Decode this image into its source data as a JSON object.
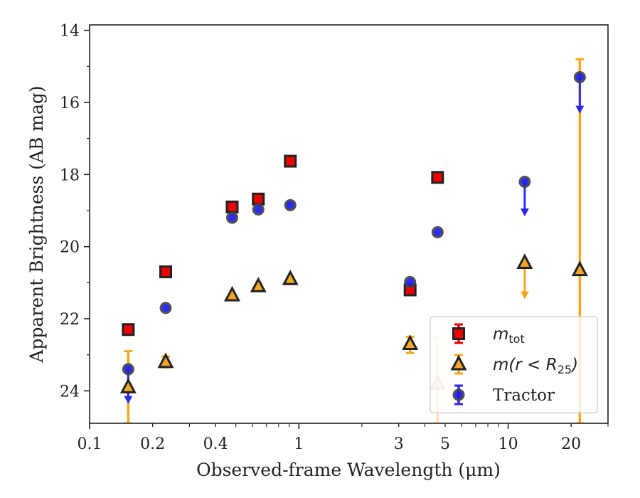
{
  "chart_data": {
    "type": "scatter",
    "title": "",
    "xlabel": "Observed-frame Wavelength (μm)",
    "ylabel": "Apparent Brightness (AB mag)",
    "xscale": "log",
    "xlim": [
      0.1,
      30
    ],
    "ylim": [
      24.9,
      13.85
    ],
    "y_inverted": true,
    "x_ticks": [
      {
        "value": 0.1,
        "label": "0.1"
      },
      {
        "value": 0.2,
        "label": "0.2"
      },
      {
        "value": 0.4,
        "label": "0.4"
      },
      {
        "value": 1,
        "label": "1"
      },
      {
        "value": 3,
        "label": "3"
      },
      {
        "value": 5,
        "label": "5"
      },
      {
        "value": 10,
        "label": "10"
      },
      {
        "value": 20,
        "label": "20"
      }
    ],
    "y_ticks": [
      {
        "value": 14,
        "label": "14"
      },
      {
        "value": 16,
        "label": "16"
      },
      {
        "value": 18,
        "label": "18"
      },
      {
        "value": 20,
        "label": "20"
      },
      {
        "value": 22,
        "label": "22"
      },
      {
        "value": 24,
        "label": "24"
      }
    ],
    "legend_position": "bottom-right",
    "series": [
      {
        "name": "m_tot",
        "legend_main": "m",
        "legend_sub": "tot",
        "marker": "square",
        "color": "#ee0000",
        "edge_color": "#222222",
        "err_color": "#ee0000",
        "points": [
          {
            "x": 0.153,
            "y": 22.3
          },
          {
            "x": 0.231,
            "y": 20.7
          },
          {
            "x": 0.48,
            "y": 18.9
          },
          {
            "x": 0.64,
            "y": 18.68
          },
          {
            "x": 0.91,
            "y": 17.63
          },
          {
            "x": 3.4,
            "y": 21.2
          },
          {
            "x": 4.6,
            "y": 18.08
          }
        ]
      },
      {
        "name": "m(r < R25)",
        "legend_main": "m(r < R",
        "legend_sub": "25",
        "legend_tail": ")",
        "marker": "triangle",
        "color": "#f5a623",
        "edge_color": "#222222",
        "err_color": "#f5a623",
        "points": [
          {
            "x": 0.153,
            "y": 23.9,
            "err_lo": 22.9,
            "err_hi": 24.9
          },
          {
            "x": 0.231,
            "y": 23.2,
            "err_lo": 23.05,
            "err_hi": 23.35
          },
          {
            "x": 0.48,
            "y": 21.35
          },
          {
            "x": 0.64,
            "y": 21.1
          },
          {
            "x": 0.91,
            "y": 20.9
          },
          {
            "x": 3.4,
            "y": 22.7,
            "err_lo": 22.5,
            "err_hi": 22.95
          },
          {
            "x": 4.6,
            "y": 23.8,
            "err_lo": 22.5,
            "err_hi": 24.9,
            "faded": true
          },
          {
            "x": 12.0,
            "y": 20.45,
            "upper_limit": true,
            "arrow_to": 21.4
          },
          {
            "x": 22.0,
            "y": 20.65,
            "err_lo": 14.8,
            "err_hi": 24.9
          }
        ]
      },
      {
        "name": "Tractor",
        "legend_main": "Tractor",
        "marker": "circle",
        "color": "#1c1cee",
        "edge_color": "#444444",
        "err_color": "#2a2aee",
        "points": [
          {
            "x": 0.153,
            "y": 23.4,
            "upper_limit": true,
            "arrow_to": 24.3
          },
          {
            "x": 0.231,
            "y": 21.7
          },
          {
            "x": 0.48,
            "y": 19.2
          },
          {
            "x": 0.64,
            "y": 18.97
          },
          {
            "x": 0.91,
            "y": 18.85
          },
          {
            "x": 3.4,
            "y": 20.98
          },
          {
            "x": 4.6,
            "y": 19.6
          },
          {
            "x": 12.0,
            "y": 18.2,
            "upper_limit": true,
            "arrow_to": 19.1
          },
          {
            "x": 22.0,
            "y": 15.3,
            "upper_limit": true,
            "arrow_to": 16.25
          }
        ]
      }
    ]
  }
}
